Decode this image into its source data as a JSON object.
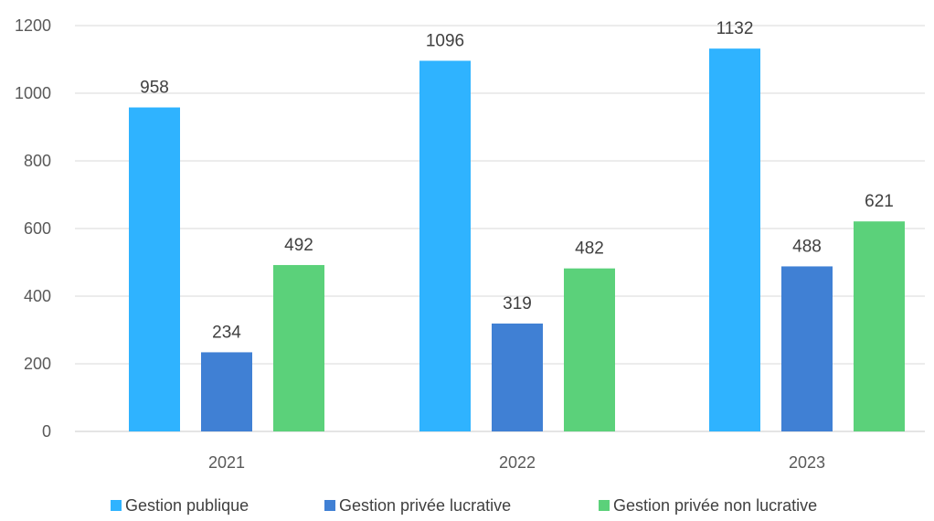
{
  "chart_data": {
    "type": "bar",
    "title": "",
    "xlabel": "",
    "ylabel": "",
    "categories": [
      "2021",
      "2022",
      "2023"
    ],
    "series": [
      {
        "name": "Gestion publique",
        "values": [
          958,
          1096,
          1132
        ],
        "color": "#2fb3ff"
      },
      {
        "name": "Gestion privée lucrative",
        "values": [
          234,
          319,
          488
        ],
        "color": "#4080d4"
      },
      {
        "name": "Gestion privée non lucrative",
        "values": [
          492,
          482,
          621
        ],
        "color": "#5bd17a"
      }
    ],
    "ylim": [
      0,
      1200
    ],
    "yticks": [
      0,
      200,
      400,
      600,
      800,
      1000,
      1200
    ],
    "grid": true,
    "legend": "bottom",
    "data_labels": true
  }
}
